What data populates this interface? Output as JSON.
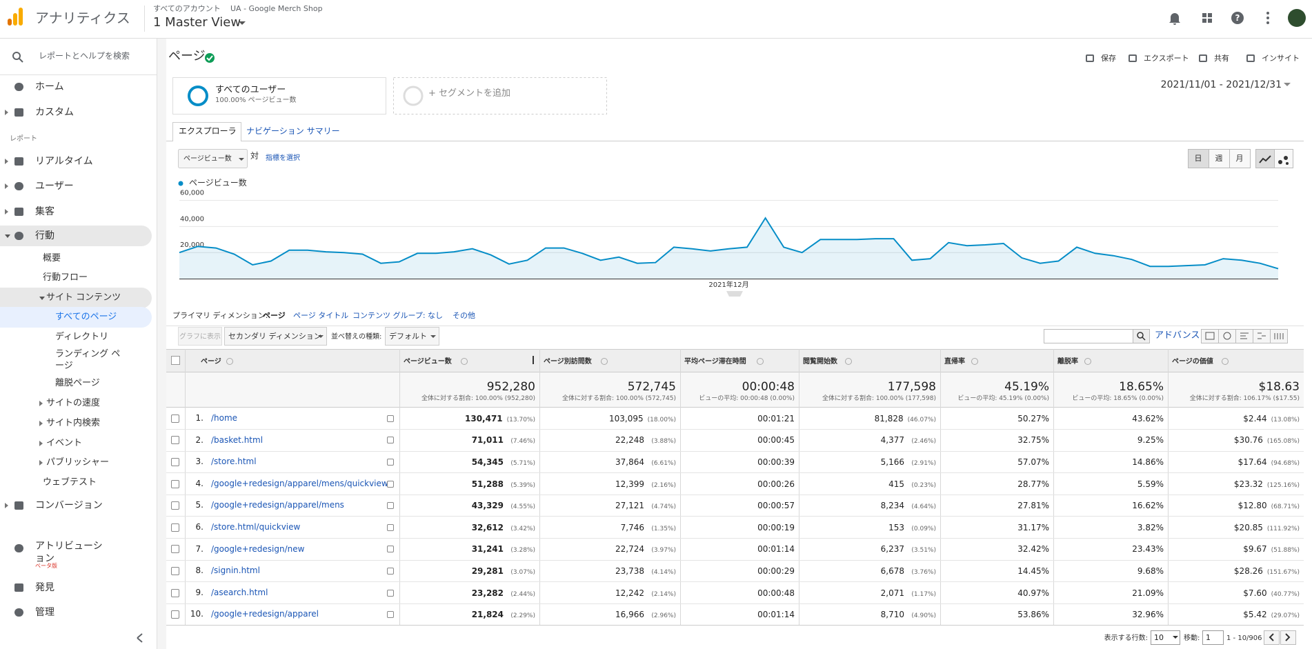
{
  "header": {
    "product": "アナリティクス",
    "breadcrumb": [
      "すべてのアカウント",
      "UA - Google Merch Shop"
    ],
    "view": "1 Master View"
  },
  "sidebar": {
    "search": "レポートとヘルプを検索",
    "items": [
      "ホーム",
      "カスタム",
      "レポート",
      "リアルタイム",
      "ユーザー",
      "集客",
      "行動",
      "概要",
      "行動フロー",
      "サイト コンテンツ",
      "すべてのページ",
      "ディレクトリ",
      "ランディング ページ",
      "離脱ページ",
      "サイトの速度",
      "サイト内検索",
      "イベント",
      "パブリッシャー",
      "ウェブテスト",
      "コンバージョン",
      "アトリビューション",
      "発見",
      "管理"
    ],
    "beta": "ベータ版"
  },
  "report": {
    "title": "ページ",
    "actions": [
      "保存",
      "エクスポート",
      "共有",
      "インサイト"
    ],
    "segment": {
      "name": "すべてのユーザー",
      "detail": "100.00% ページビュー数",
      "add": "+ セグメントを追加"
    },
    "date_range": "2021/11/01 - 2021/12/31",
    "tabs": [
      "エクスプローラ",
      "ナビゲーション サマリー"
    ],
    "metric": "ページビュー数",
    "versus": "対",
    "select_metric": "指標を選択",
    "granularity": [
      "日",
      "週",
      "月"
    ]
  },
  "chart_data": {
    "type": "line",
    "categories": [
      null,
      null,
      null,
      null,
      null,
      null,
      null,
      null,
      null,
      null,
      null,
      null,
      null,
      null,
      null,
      null,
      null,
      null,
      null,
      null,
      null,
      null,
      null,
      null,
      null,
      null,
      null,
      null,
      null,
      null,
      "2021年12月",
      null,
      null,
      null,
      null,
      null,
      null,
      null,
      null,
      null,
      null,
      null,
      null,
      null,
      null,
      null,
      null,
      null,
      null,
      null,
      null,
      null,
      null,
      null,
      null,
      null,
      null,
      null,
      null,
      null,
      null
    ],
    "series": [
      {
        "name": "ページビュー数",
        "color": "#058dc7",
        "values": [
          20000,
          24700,
          23500,
          18800,
          10600,
          13500,
          21800,
          21800,
          20600,
          20000,
          18800,
          11800,
          12900,
          19400,
          19400,
          20600,
          22900,
          18200,
          11200,
          14100,
          23500,
          23500,
          19400,
          14100,
          16500,
          11800,
          12300,
          24100,
          22900,
          21200,
          22900,
          24100,
          46500,
          24100,
          20000,
          30000,
          30000,
          30000,
          30600,
          30600,
          14100,
          15300,
          27600,
          25300,
          25900,
          27000,
          15900,
          11800,
          13500,
          24100,
          19400,
          17600,
          14700,
          9400,
          9400,
          10000,
          10600,
          15300,
          14100,
          11800,
          7600
        ]
      }
    ],
    "ylim": [
      0,
      64000
    ],
    "yticks": [
      {
        "value": 20000,
        "label": "20,000"
      },
      {
        "value": 40000,
        "label": "40,000"
      },
      {
        "value": 60000,
        "label": "60,000"
      }
    ],
    "grid": true,
    "area": true
  },
  "dimensions": {
    "label": "プライマリ ディメンション:",
    "items": [
      "ページ",
      "ページ タイトル",
      "コンテンツ グループ: なし",
      "その他"
    ]
  },
  "toolbar": {
    "plot": "グラフに表示",
    "secondary": "セカンダリ ディメンション",
    "sort_label": "並べ替えの種類:",
    "sort": "デフォルト",
    "advanced": "アドバンス"
  },
  "table": {
    "columns": [
      "ページ",
      "ページビュー数",
      "ページ別訪問数",
      "平均ページ滞在時間",
      "閲覧開始数",
      "直帰率",
      "離脱率",
      "ページの価値"
    ],
    "totals": [
      [
        "952,280",
        "全体に対する割合: 100.00% (952,280)"
      ],
      [
        "572,745",
        "全体に対する割合: 100.00% (572,745)"
      ],
      [
        "00:00:48",
        "ビューの平均: 00:00:48 (0.00%)"
      ],
      [
        "177,598",
        "全体に対する割合: 100.00% (177,598)"
      ],
      [
        "45.19%",
        "ビューの平均: 45.19% (0.00%)"
      ],
      [
        "18.65%",
        "ビューの平均: 18.65% (0.00%)"
      ],
      [
        "$18.63",
        "全体に対する割合: 106.17% ($17.55)"
      ]
    ],
    "rows": [
      [
        "1.",
        "/home",
        "130,471",
        "(13.70%)",
        "103,095",
        "(18.00%)",
        "00:01:21",
        "81,828",
        "(46.07%)",
        "50.27%",
        "43.62%",
        "$2.44",
        "(13.08%)"
      ],
      [
        "2.",
        "/basket.html",
        "71,011",
        "(7.46%)",
        "22,248",
        "(3.88%)",
        "00:00:45",
        "4,377",
        "(2.46%)",
        "32.75%",
        "9.25%",
        "$30.76",
        "(165.08%)"
      ],
      [
        "3.",
        "/store.html",
        "54,345",
        "(5.71%)",
        "37,864",
        "(6.61%)",
        "00:00:39",
        "5,166",
        "(2.91%)",
        "57.07%",
        "14.86%",
        "$17.64",
        "(94.68%)"
      ],
      [
        "4.",
        "/google+redesign/apparel/mens/quickview",
        "51,288",
        "(5.39%)",
        "12,399",
        "(2.16%)",
        "00:00:26",
        "415",
        "(0.23%)",
        "28.77%",
        "5.59%",
        "$23.32",
        "(125.16%)"
      ],
      [
        "5.",
        "/google+redesign/apparel/mens",
        "43,329",
        "(4.55%)",
        "27,121",
        "(4.74%)",
        "00:00:57",
        "8,234",
        "(4.64%)",
        "27.81%",
        "16.62%",
        "$12.80",
        "(68.71%)"
      ],
      [
        "6.",
        "/store.html/quickview",
        "32,612",
        "(3.42%)",
        "7,746",
        "(1.35%)",
        "00:00:19",
        "153",
        "(0.09%)",
        "31.17%",
        "3.82%",
        "$20.85",
        "(111.92%)"
      ],
      [
        "7.",
        "/google+redesign/new",
        "31,241",
        "(3.28%)",
        "22,724",
        "(3.97%)",
        "00:01:14",
        "6,237",
        "(3.51%)",
        "32.42%",
        "23.43%",
        "$9.67",
        "(51.88%)"
      ],
      [
        "8.",
        "/signin.html",
        "29,281",
        "(3.07%)",
        "23,738",
        "(4.14%)",
        "00:00:29",
        "6,678",
        "(3.76%)",
        "14.45%",
        "9.68%",
        "$28.26",
        "(151.67%)"
      ],
      [
        "9.",
        "/asearch.html",
        "23,282",
        "(2.44%)",
        "12,242",
        "(2.14%)",
        "00:00:48",
        "2,071",
        "(1.17%)",
        "40.97%",
        "21.09%",
        "$7.60",
        "(40.77%)"
      ],
      [
        "10.",
        "/google+redesign/apparel",
        "21,824",
        "(2.29%)",
        "16,966",
        "(2.96%)",
        "00:01:14",
        "8,710",
        "(4.90%)",
        "53.86%",
        "32.96%",
        "$5.42",
        "(29.07%)"
      ]
    ]
  },
  "pagination": {
    "rows_label": "表示する行数:",
    "rows": "10",
    "goto_label": "移動:",
    "goto": "1",
    "range": "1 - 10/906"
  }
}
